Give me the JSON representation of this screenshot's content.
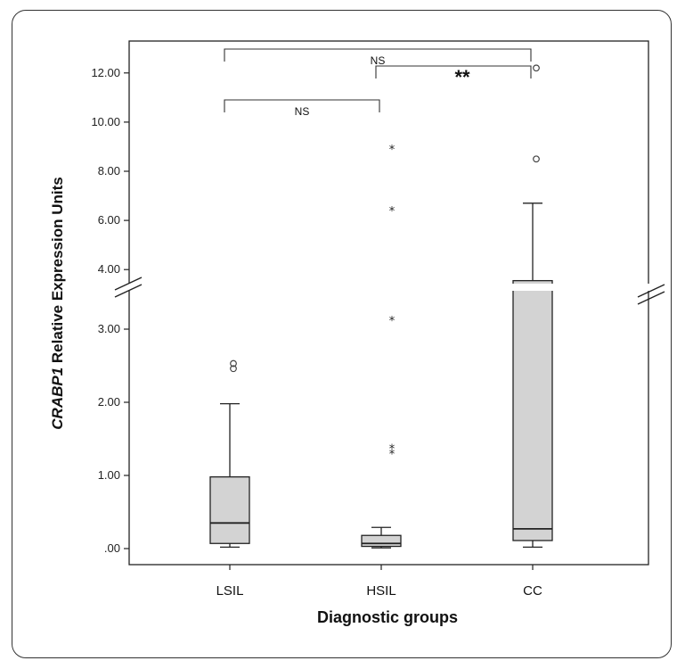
{
  "chart_data": {
    "type": "box",
    "xlabel": "Diagnostic groups",
    "ylabel_italic": "CRABP1",
    "ylabel_rest": " Relative Expression Units",
    "categories": [
      "LSIL",
      "HSIL",
      "CC"
    ],
    "y_axis_break": true,
    "lower_ticks": [
      ".00",
      "1.00",
      "2.00",
      "3.00"
    ],
    "upper_ticks": [
      "4.00",
      "6.00",
      "8.00",
      "10.00",
      "12.00"
    ],
    "lower_range": [
      0,
      3.5
    ],
    "upper_range": [
      3.5,
      12.5
    ],
    "box_color": "#d3d3d3",
    "boxes": [
      {
        "name": "LSIL",
        "whisker_low": 0.02,
        "q1": 0.07,
        "median": 0.35,
        "q3": 0.98,
        "whisker_high": 1.98,
        "outliers": [
          {
            "value": 2.46,
            "marker": "o"
          },
          {
            "value": 2.53,
            "marker": "o"
          }
        ]
      },
      {
        "name": "HSIL",
        "whisker_low": 0.01,
        "q1": 0.03,
        "median": 0.07,
        "q3": 0.18,
        "whisker_high": 0.29,
        "outliers": [
          {
            "value": 1.3,
            "marker": "*"
          },
          {
            "value": 1.37,
            "marker": "*"
          },
          {
            "value": 3.12,
            "marker": "*"
          },
          {
            "value": 6.4,
            "marker": "*"
          },
          {
            "value": 8.9,
            "marker": "*"
          }
        ]
      },
      {
        "name": "CC",
        "whisker_low": 0.02,
        "q1": 0.11,
        "median": 0.27,
        "q3": 3.55,
        "whisker_high": 6.7,
        "outliers": [
          {
            "value": 8.5,
            "marker": "o"
          },
          {
            "value": 12.2,
            "marker": "o"
          }
        ]
      }
    ],
    "annotations": [
      {
        "from": "LSIL",
        "to": "CC",
        "label": "NS"
      },
      {
        "from": "HSIL",
        "to": "CC",
        "label": "**"
      },
      {
        "from": "LSIL",
        "to": "HSIL",
        "label": "NS"
      }
    ]
  }
}
